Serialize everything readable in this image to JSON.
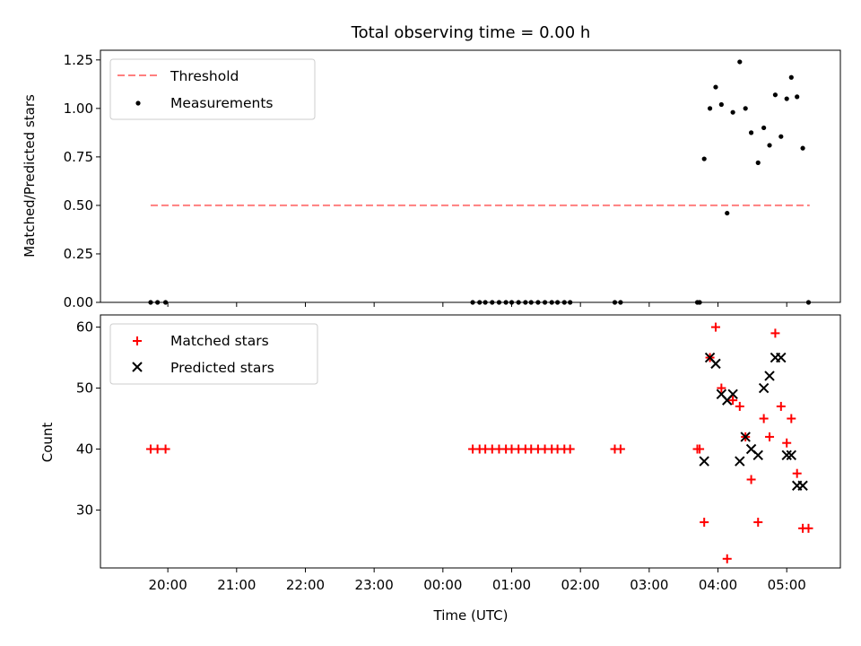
{
  "colors": {
    "threshold": "#ff7f7f",
    "measurements": "#000000",
    "matched": "#ff0000",
    "predicted": "#000000"
  },
  "chart_data": [
    {
      "type": "scatter",
      "title": "Total observing time = 0.00 h",
      "xlabel": "",
      "ylabel": "Matched/Predicted stars",
      "ylim": [
        0,
        1.3
      ],
      "xlim_hours": [
        -4.98,
        5.78
      ],
      "yticks": [
        "0.00",
        "0.25",
        "0.50",
        "0.75",
        "1.00",
        "1.25"
      ],
      "grid": false,
      "legend_position": "top-left",
      "threshold": {
        "name": "Threshold",
        "value": 0.5,
        "x_range": [
          "19:45",
          "05:20"
        ]
      },
      "series": [
        {
          "name": "Measurements",
          "points": [
            {
              "x": "19:45",
              "y": 0
            },
            {
              "x": "19:51",
              "y": 0
            },
            {
              "x": "19:58",
              "y": 0
            },
            {
              "x": "00:26",
              "y": 0
            },
            {
              "x": "00:32",
              "y": 0
            },
            {
              "x": "00:37",
              "y": 0
            },
            {
              "x": "00:43",
              "y": 0
            },
            {
              "x": "00:49",
              "y": 0
            },
            {
              "x": "00:55",
              "y": 0
            },
            {
              "x": "01:00",
              "y": 0
            },
            {
              "x": "01:06",
              "y": 0
            },
            {
              "x": "01:12",
              "y": 0
            },
            {
              "x": "01:17",
              "y": 0
            },
            {
              "x": "01:23",
              "y": 0
            },
            {
              "x": "01:29",
              "y": 0
            },
            {
              "x": "01:35",
              "y": 0
            },
            {
              "x": "01:40",
              "y": 0
            },
            {
              "x": "01:46",
              "y": 0
            },
            {
              "x": "01:51",
              "y": 0
            },
            {
              "x": "02:30",
              "y": 0
            },
            {
              "x": "02:35",
              "y": 0
            },
            {
              "x": "03:42",
              "y": 0
            },
            {
              "x": "03:44",
              "y": 0
            },
            {
              "x": "03:48",
              "y": 0.74
            },
            {
              "x": "03:53",
              "y": 1.0
            },
            {
              "x": "03:58",
              "y": 1.11
            },
            {
              "x": "04:03",
              "y": 1.02
            },
            {
              "x": "04:08",
              "y": 0.46
            },
            {
              "x": "04:13",
              "y": 0.98
            },
            {
              "x": "04:19",
              "y": 1.24
            },
            {
              "x": "04:24",
              "y": 1.0
            },
            {
              "x": "04:29",
              "y": 0.875
            },
            {
              "x": "04:35",
              "y": 0.72
            },
            {
              "x": "04:40",
              "y": 0.9
            },
            {
              "x": "04:45",
              "y": 0.81
            },
            {
              "x": "04:50",
              "y": 1.07
            },
            {
              "x": "04:55",
              "y": 0.855
            },
            {
              "x": "05:00",
              "y": 1.05
            },
            {
              "x": "05:04",
              "y": 1.16
            },
            {
              "x": "05:09",
              "y": 1.06
            },
            {
              "x": "05:14",
              "y": 0.795
            },
            {
              "x": "05:19",
              "y": 0
            }
          ]
        }
      ]
    },
    {
      "type": "scatter",
      "title": "",
      "xlabel": "Time (UTC)",
      "ylabel": "Count",
      "ylim": [
        20.5,
        62
      ],
      "xlim_hours": [
        -4.98,
        5.78
      ],
      "xticks": [
        "20:00",
        "21:00",
        "22:00",
        "23:00",
        "00:00",
        "01:00",
        "02:00",
        "03:00",
        "04:00",
        "05:00"
      ],
      "yticks": [
        "30",
        "40",
        "50",
        "60"
      ],
      "grid": false,
      "legend_position": "top-left",
      "series": [
        {
          "name": "Matched stars",
          "points": [
            {
              "x": "19:45",
              "y": 40
            },
            {
              "x": "19:51",
              "y": 40
            },
            {
              "x": "19:58",
              "y": 40
            },
            {
              "x": "00:26",
              "y": 40
            },
            {
              "x": "00:32",
              "y": 40
            },
            {
              "x": "00:37",
              "y": 40
            },
            {
              "x": "00:43",
              "y": 40
            },
            {
              "x": "00:49",
              "y": 40
            },
            {
              "x": "00:55",
              "y": 40
            },
            {
              "x": "01:00",
              "y": 40
            },
            {
              "x": "01:06",
              "y": 40
            },
            {
              "x": "01:12",
              "y": 40
            },
            {
              "x": "01:17",
              "y": 40
            },
            {
              "x": "01:23",
              "y": 40
            },
            {
              "x": "01:29",
              "y": 40
            },
            {
              "x": "01:35",
              "y": 40
            },
            {
              "x": "01:40",
              "y": 40
            },
            {
              "x": "01:46",
              "y": 40
            },
            {
              "x": "01:51",
              "y": 40
            },
            {
              "x": "02:30",
              "y": 40
            },
            {
              "x": "02:35",
              "y": 40
            },
            {
              "x": "03:42",
              "y": 40
            },
            {
              "x": "03:44",
              "y": 40
            },
            {
              "x": "03:48",
              "y": 28
            },
            {
              "x": "03:53",
              "y": 55
            },
            {
              "x": "03:58",
              "y": 60
            },
            {
              "x": "04:03",
              "y": 50
            },
            {
              "x": "04:08",
              "y": 22
            },
            {
              "x": "04:13",
              "y": 48
            },
            {
              "x": "04:19",
              "y": 47
            },
            {
              "x": "04:24",
              "y": 42
            },
            {
              "x": "04:29",
              "y": 35
            },
            {
              "x": "04:35",
              "y": 28
            },
            {
              "x": "04:40",
              "y": 45
            },
            {
              "x": "04:45",
              "y": 42
            },
            {
              "x": "04:50",
              "y": 59
            },
            {
              "x": "04:55",
              "y": 47
            },
            {
              "x": "05:00",
              "y": 41
            },
            {
              "x": "05:04",
              "y": 45
            },
            {
              "x": "05:09",
              "y": 36
            },
            {
              "x": "05:14",
              "y": 27
            },
            {
              "x": "05:19",
              "y": 27
            }
          ]
        },
        {
          "name": "Predicted stars",
          "points": [
            {
              "x": "03:48",
              "y": 38
            },
            {
              "x": "03:53",
              "y": 55
            },
            {
              "x": "03:58",
              "y": 54
            },
            {
              "x": "04:03",
              "y": 49
            },
            {
              "x": "04:08",
              "y": 48
            },
            {
              "x": "04:13",
              "y": 49
            },
            {
              "x": "04:19",
              "y": 38
            },
            {
              "x": "04:24",
              "y": 42
            },
            {
              "x": "04:29",
              "y": 40
            },
            {
              "x": "04:35",
              "y": 39
            },
            {
              "x": "04:40",
              "y": 50
            },
            {
              "x": "04:45",
              "y": 52
            },
            {
              "x": "04:50",
              "y": 55
            },
            {
              "x": "04:55",
              "y": 55
            },
            {
              "x": "05:00",
              "y": 39
            },
            {
              "x": "05:04",
              "y": 39
            },
            {
              "x": "05:09",
              "y": 34
            },
            {
              "x": "05:14",
              "y": 34
            }
          ]
        }
      ]
    }
  ]
}
